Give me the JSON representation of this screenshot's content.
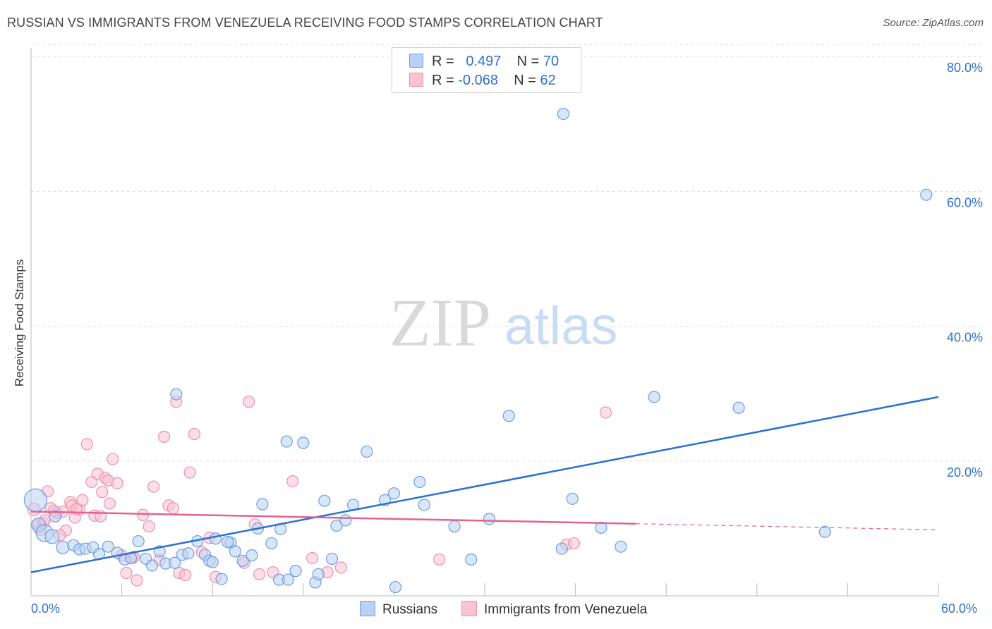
{
  "header": {
    "title": "RUSSIAN VS IMMIGRANTS FROM VENEZUELA RECEIVING FOOD STAMPS CORRELATION CHART",
    "source": "Source: ZipAtlas.com"
  },
  "watermark": {
    "zip": "ZIP",
    "atlas": "atlas"
  },
  "legend_top": {
    "rows": [
      {
        "r_label": "R =",
        "r_value": "0.497",
        "n_label": "N =",
        "n_value": "70"
      },
      {
        "r_label": "R =",
        "r_value": "-0.068",
        "n_label": "N =",
        "n_value": "62"
      }
    ]
  },
  "legend_bottom": {
    "items": [
      {
        "label": "Russians"
      },
      {
        "label": "Immigrants from Venezuela"
      }
    ]
  },
  "colors": {
    "blue_fill": "#b9d2f3",
    "blue_stroke": "#6c9de0",
    "blue_line": "#2a6fd1",
    "pink_fill": "#f9c3d2",
    "pink_stroke": "#ec8fae",
    "pink_line": "#e4628f",
    "tick_text": "#2f6fcf",
    "grid": "#dcdcdc"
  },
  "chart_data": {
    "type": "scatter",
    "title": "RUSSIAN VS IMMIGRANTS FROM VENEZUELA RECEIVING FOOD STAMPS CORRELATION CHART",
    "xlabel": "",
    "ylabel": "Receiving Food Stamps",
    "x_tick_labels": [
      "0.0%",
      "60.0%"
    ],
    "y_tick_labels": [
      "20.0%",
      "40.0%",
      "60.0%",
      "80.0%"
    ],
    "xlim": [
      0,
      60
    ],
    "ylim": [
      0,
      82
    ],
    "grid": true,
    "legend_position": "top-center",
    "series": [
      {
        "name": "Russians",
        "r": 0.497,
        "n": 70,
        "trend": {
          "x": [
            0,
            60
          ],
          "y": [
            3.5,
            29.5
          ],
          "dashed_from": null
        },
        "points": [
          [
            0.3,
            14.2,
            16
          ],
          [
            0.5,
            10.5,
            10
          ],
          [
            0.9,
            9.3,
            12
          ],
          [
            1.4,
            8.8,
            10
          ],
          [
            1.6,
            11.8,
            8
          ],
          [
            2.1,
            7.2,
            9
          ],
          [
            2.8,
            7.5,
            8
          ],
          [
            3.2,
            6.9,
            8
          ],
          [
            3.6,
            7.0,
            8
          ],
          [
            4.1,
            7.2,
            8
          ],
          [
            4.5,
            6.2,
            8
          ],
          [
            5.1,
            7.3,
            8
          ],
          [
            5.7,
            6.4,
            8
          ],
          [
            6.2,
            5.4,
            8
          ],
          [
            6.6,
            5.6,
            8
          ],
          [
            7.1,
            8.1,
            8
          ],
          [
            7.6,
            5.5,
            8
          ],
          [
            8.0,
            4.5,
            8
          ],
          [
            8.5,
            6.6,
            8
          ],
          [
            8.9,
            4.8,
            8
          ],
          [
            9.5,
            4.9,
            8
          ],
          [
            10.0,
            6.1,
            8
          ],
          [
            10.4,
            6.3,
            8
          ],
          [
            11.0,
            8.1,
            8
          ],
          [
            11.5,
            6.1,
            8
          ],
          [
            11.8,
            5.2,
            8
          ],
          [
            12.2,
            8.5,
            8
          ],
          [
            12.6,
            2.5,
            8
          ],
          [
            13.2,
            7.9,
            8
          ],
          [
            13.5,
            6.6,
            8
          ],
          [
            14.0,
            5.2,
            8
          ],
          [
            14.6,
            6.0,
            8
          ],
          [
            15.0,
            10.0,
            8
          ],
          [
            15.3,
            13.6,
            8
          ],
          [
            15.9,
            7.8,
            8
          ],
          [
            16.4,
            2.4,
            8
          ],
          [
            17.0,
            2.4,
            8
          ],
          [
            17.5,
            3.7,
            8
          ],
          [
            18.8,
            2.0,
            8
          ],
          [
            19.0,
            3.2,
            8
          ],
          [
            19.9,
            5.5,
            8
          ],
          [
            18.0,
            22.7,
            8
          ],
          [
            16.9,
            22.9,
            8
          ],
          [
            19.4,
            14.1,
            8
          ],
          [
            20.2,
            10.4,
            8
          ],
          [
            20.8,
            11.2,
            8
          ],
          [
            21.3,
            13.5,
            8
          ],
          [
            22.2,
            21.4,
            8
          ],
          [
            23.4,
            14.2,
            8
          ],
          [
            24.0,
            15.2,
            8
          ],
          [
            24.1,
            1.3,
            8
          ],
          [
            25.7,
            16.9,
            8
          ],
          [
            26.0,
            13.5,
            8
          ],
          [
            28.0,
            10.3,
            8
          ],
          [
            29.1,
            5.4,
            8
          ],
          [
            30.3,
            11.4,
            8
          ],
          [
            31.6,
            26.7,
            8
          ],
          [
            35.2,
            71.5,
            8
          ],
          [
            35.1,
            7.0,
            8
          ],
          [
            35.8,
            14.4,
            8
          ],
          [
            37.7,
            10.1,
            8
          ],
          [
            39.0,
            7.3,
            8
          ],
          [
            41.2,
            29.5,
            8
          ],
          [
            46.8,
            27.9,
            8
          ],
          [
            52.5,
            9.5,
            8
          ],
          [
            59.2,
            59.5,
            8
          ],
          [
            9.6,
            29.9,
            8
          ],
          [
            16.5,
            9.9,
            8
          ],
          [
            13.0,
            8.0,
            8
          ],
          [
            12.0,
            5.0,
            8
          ]
        ]
      },
      {
        "name": "Immigrants from Venezuela",
        "r": -0.068,
        "n": 62,
        "trend": {
          "x": [
            0,
            40,
            60
          ],
          "y": [
            12.5,
            10.7,
            9.8
          ],
          "dashed_from": 40
        },
        "points": [
          [
            0.2,
            12.8,
            9
          ],
          [
            0.5,
            10.6,
            9
          ],
          [
            0.8,
            10.8,
            8
          ],
          [
            1.1,
            15.5,
            8
          ],
          [
            1.3,
            13.0,
            8
          ],
          [
            1.7,
            12.3,
            8
          ],
          [
            2.1,
            12.5,
            8
          ],
          [
            2.3,
            9.7,
            8
          ],
          [
            2.6,
            13.9,
            8
          ],
          [
            2.9,
            11.6,
            8
          ],
          [
            3.2,
            12.8,
            8
          ],
          [
            3.4,
            14.2,
            8
          ],
          [
            3.7,
            22.5,
            8
          ],
          [
            4.0,
            16.9,
            8
          ],
          [
            4.2,
            11.9,
            8
          ],
          [
            4.4,
            18.1,
            8
          ],
          [
            4.7,
            15.4,
            8
          ],
          [
            4.9,
            17.5,
            8
          ],
          [
            5.1,
            17.1,
            8
          ],
          [
            5.4,
            20.3,
            8
          ],
          [
            5.7,
            16.7,
            8
          ],
          [
            6.0,
            6.0,
            8
          ],
          [
            6.3,
            3.4,
            8
          ],
          [
            6.7,
            5.6,
            8
          ],
          [
            7.0,
            2.3,
            8
          ],
          [
            7.4,
            12.0,
            8
          ],
          [
            7.8,
            10.3,
            8
          ],
          [
            8.1,
            16.2,
            8
          ],
          [
            8.5,
            5.3,
            8
          ],
          [
            8.8,
            23.6,
            8
          ],
          [
            9.1,
            13.4,
            8
          ],
          [
            9.4,
            13.0,
            8
          ],
          [
            9.6,
            28.8,
            8
          ],
          [
            9.8,
            3.4,
            8
          ],
          [
            10.2,
            3.1,
            8
          ],
          [
            10.5,
            18.3,
            8
          ],
          [
            10.8,
            24.0,
            8
          ],
          [
            11.3,
            6.5,
            8
          ],
          [
            11.8,
            8.6,
            8
          ],
          [
            12.2,
            2.8,
            8
          ],
          [
            14.1,
            4.9,
            8
          ],
          [
            14.4,
            28.8,
            8
          ],
          [
            14.8,
            10.6,
            8
          ],
          [
            15.1,
            3.2,
            8
          ],
          [
            16.0,
            3.5,
            8
          ],
          [
            17.3,
            17.0,
            8
          ],
          [
            18.6,
            5.6,
            8
          ],
          [
            19.6,
            3.5,
            8
          ],
          [
            20.5,
            4.2,
            8
          ],
          [
            27.0,
            5.4,
            8
          ],
          [
            35.4,
            7.6,
            8
          ],
          [
            35.9,
            7.8,
            8
          ],
          [
            38.0,
            27.2,
            8
          ],
          [
            1.9,
            9.0,
            8
          ],
          [
            2.7,
            13.4,
            8
          ],
          [
            0.9,
            11.2,
            8
          ],
          [
            1.5,
            12.6,
            8
          ],
          [
            6.8,
            5.8,
            8
          ],
          [
            3.0,
            12.9,
            8
          ],
          [
            5.2,
            13.7,
            8
          ],
          [
            4.6,
            11.8,
            8
          ],
          [
            0.6,
            9.8,
            8
          ]
        ]
      }
    ]
  }
}
